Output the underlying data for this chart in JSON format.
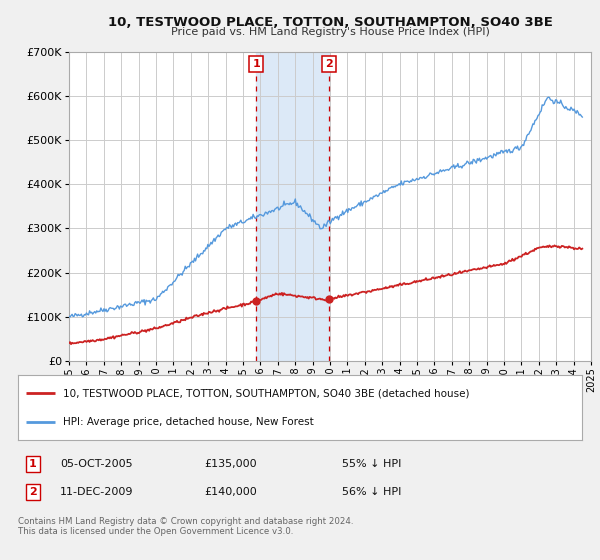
{
  "title": "10, TESTWOOD PLACE, TOTTON, SOUTHAMPTON, SO40 3BE",
  "subtitle": "Price paid vs. HM Land Registry's House Price Index (HPI)",
  "legend_label_red": "10, TESTWOOD PLACE, TOTTON, SOUTHAMPTON, SO40 3BE (detached house)",
  "legend_label_blue": "HPI: Average price, detached house, New Forest",
  "footer1": "Contains HM Land Registry data © Crown copyright and database right 2024.",
  "footer2": "This data is licensed under the Open Government Licence v3.0.",
  "sale1_date": "05-OCT-2005",
  "sale1_price": 135000,
  "sale1_pct": "55% ↓ HPI",
  "sale2_date": "11-DEC-2009",
  "sale2_price": 140000,
  "sale2_pct": "56% ↓ HPI",
  "sale1_x": 2005.76,
  "sale2_x": 2009.94,
  "vline1_x": 2005.76,
  "vline2_x": 2009.94,
  "shade_color": "#dce9f7",
  "vline_color": "#cc0000",
  "red_line_color": "#cc2222",
  "blue_line_color": "#5599dd",
  "grid_color": "#cccccc",
  "background_color": "#f0f0f0",
  "plot_bg_color": "#ffffff",
  "ylim": [
    0,
    700000
  ],
  "xlim": [
    1995,
    2025
  ],
  "yticks": [
    0,
    100000,
    200000,
    300000,
    400000,
    500000,
    600000,
    700000
  ],
  "xticks": [
    1995,
    1996,
    1997,
    1998,
    1999,
    2000,
    2001,
    2002,
    2003,
    2004,
    2005,
    2006,
    2007,
    2008,
    2009,
    2010,
    2011,
    2012,
    2013,
    2014,
    2015,
    2016,
    2017,
    2018,
    2019,
    2020,
    2021,
    2022,
    2023,
    2024,
    2025
  ]
}
